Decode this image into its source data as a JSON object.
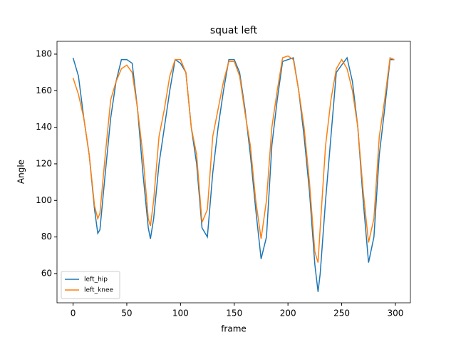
{
  "chart_data": {
    "type": "line",
    "title": "squat left",
    "x_label": "frame",
    "y_label": "Angle",
    "x": [
      0,
      5,
      10,
      15,
      20,
      23,
      25,
      30,
      35,
      40,
      45,
      50,
      55,
      60,
      65,
      70,
      72,
      75,
      80,
      85,
      90,
      95,
      100,
      105,
      110,
      115,
      120,
      125,
      130,
      135,
      140,
      145,
      150,
      155,
      160,
      165,
      170,
      175,
      180,
      185,
      190,
      195,
      200,
      205,
      210,
      215,
      220,
      225,
      228,
      230,
      235,
      240,
      245,
      250,
      255,
      260,
      265,
      270,
      275,
      280,
      285,
      290,
      295,
      299
    ],
    "series": [
      {
        "name": "left_hip",
        "color": "#1f77b4",
        "values": [
          178,
          168,
          145,
          125,
          95,
          82,
          84,
          115,
          145,
          165,
          177,
          177,
          175,
          150,
          115,
          85,
          79,
          90,
          120,
          140,
          160,
          177,
          175,
          170,
          140,
          120,
          85,
          80,
          115,
          140,
          160,
          177,
          177,
          170,
          150,
          125,
          95,
          68,
          80,
          130,
          155,
          176,
          177,
          178,
          160,
          135,
          105,
          65,
          50,
          60,
          100,
          135,
          170,
          174,
          178,
          165,
          140,
          100,
          66,
          80,
          125,
          150,
          177,
          177
        ]
      },
      {
        "name": "left_knee",
        "color": "#ff7f0e",
        "values": [
          167,
          158,
          145,
          125,
          97,
          90,
          93,
          125,
          155,
          165,
          172,
          174,
          170,
          150,
          125,
          90,
          86,
          100,
          135,
          150,
          168,
          177,
          177,
          170,
          140,
          125,
          88,
          95,
          135,
          150,
          165,
          176,
          176,
          168,
          148,
          130,
          100,
          79,
          100,
          140,
          160,
          178,
          179,
          177,
          160,
          140,
          110,
          72,
          66,
          85,
          130,
          155,
          172,
          177,
          172,
          160,
          140,
          105,
          77,
          90,
          135,
          155,
          178,
          177
        ]
      }
    ],
    "xlim": [
      -14.95,
      313.95
    ],
    "xticks": [
      0,
      50,
      100,
      150,
      200,
      250,
      300
    ],
    "ylim": [
      44,
      187
    ],
    "yticks": [
      60,
      80,
      100,
      120,
      140,
      160,
      180
    ],
    "legend": "lower left"
  }
}
